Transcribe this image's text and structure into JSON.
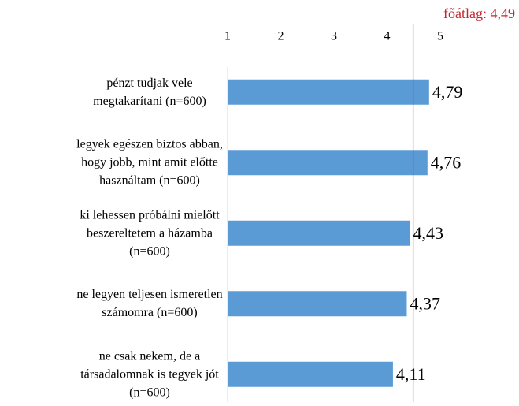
{
  "chart_data": {
    "type": "bar",
    "orientation": "horizontal",
    "categories": [
      "pénzt tudjak vele\nmegtakarítani (n=600)",
      "legyek egészen biztos abban,\nhogy jobb, mint amit előtte\nhasználtam (n=600)",
      "ki lehessen próbálni mielőtt\nbeszereltetem a házamba\n(n=600)",
      "ne legyen teljesen ismeretlen\nszámomra (n=600)",
      "ne csak nekem, de a\ntársadalomnak is tegyek jót\n(n=600)"
    ],
    "values": [
      4.79,
      4.76,
      4.43,
      4.37,
      4.11
    ],
    "value_labels": [
      "4,79",
      "4,76",
      "4,43",
      "4,37",
      "4,11"
    ],
    "color": "#5b9bd5",
    "xlim": [
      1,
      5
    ],
    "xticks": [
      1,
      2,
      3,
      4,
      5
    ],
    "reference_line": {
      "value": 4.49,
      "label": "főátlag: 4,49",
      "color": "#c0282e"
    }
  }
}
